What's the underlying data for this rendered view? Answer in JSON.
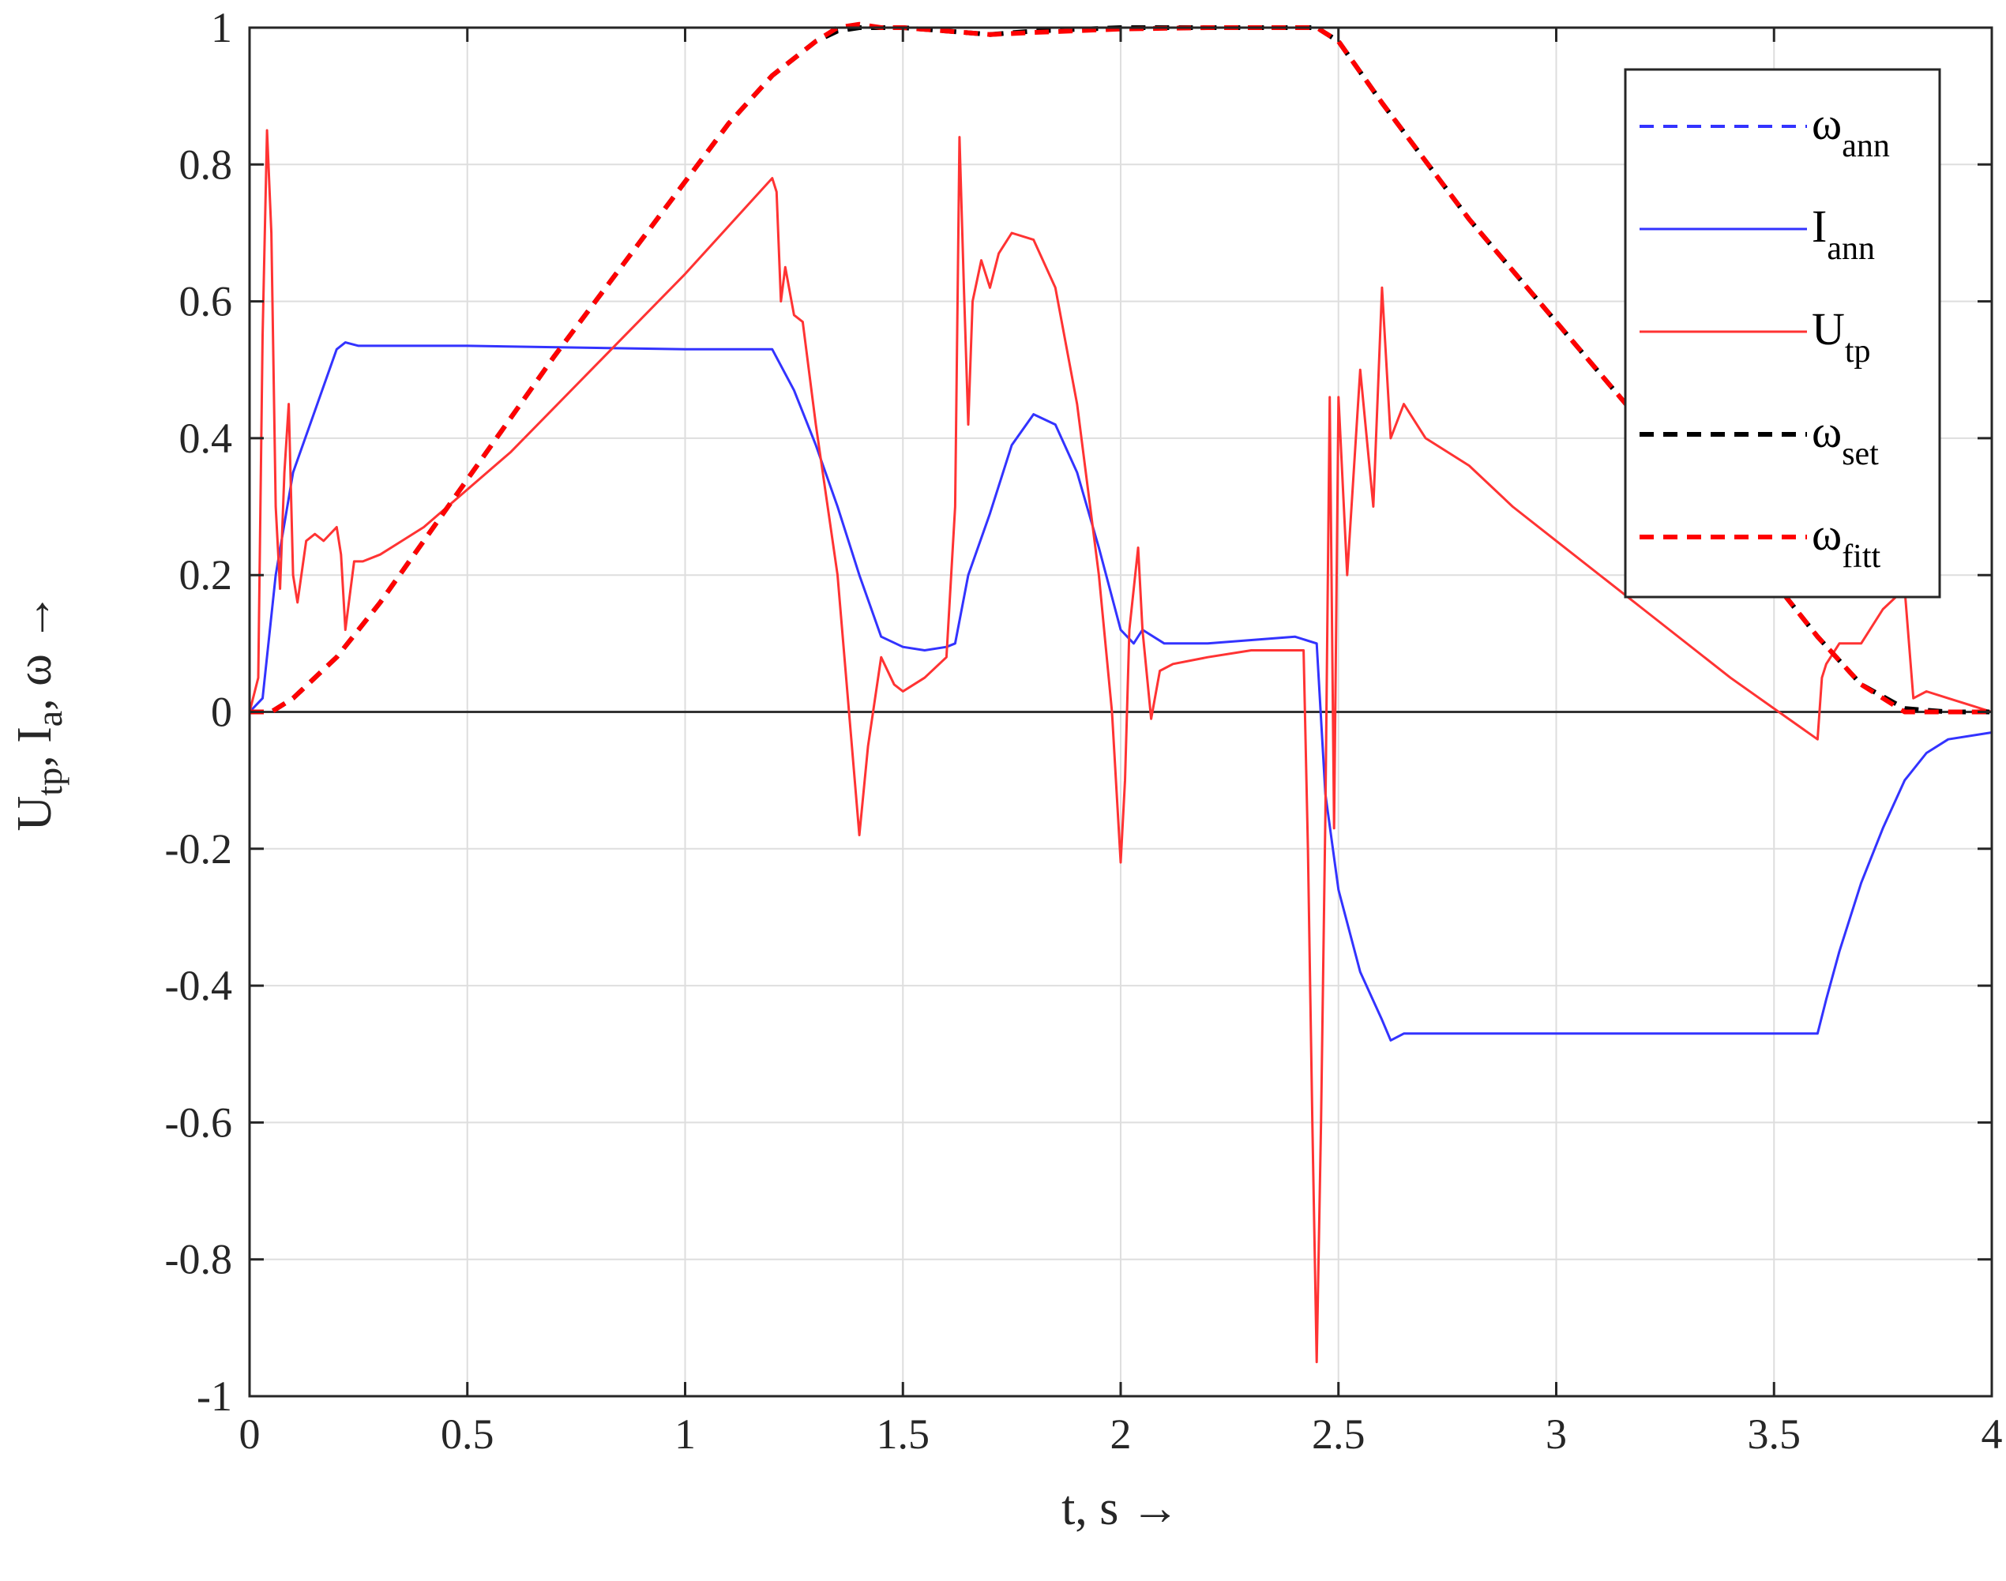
{
  "chart_data": {
    "type": "line",
    "xlabel": "t, s →",
    "ylabel": {
      "parts": [
        {
          "text": "U",
          "sub": "tp"
        },
        {
          "text": ", I",
          "sub": "a"
        },
        {
          "text": ", ω →",
          "sub": ""
        }
      ]
    },
    "xlim": [
      0,
      4
    ],
    "ylim": [
      -1,
      1
    ],
    "xticks": [
      0,
      0.5,
      1,
      1.5,
      2,
      2.5,
      3,
      3.5,
      4
    ],
    "xtick_labels": [
      "0",
      "0.5",
      "1",
      "1.5",
      "2",
      "2.5",
      "3",
      "3.5",
      "4"
    ],
    "yticks": [
      -1,
      -0.8,
      -0.6,
      -0.4,
      -0.2,
      0,
      0.2,
      0.4,
      0.6,
      0.8,
      1
    ],
    "ytick_labels": [
      "-1",
      "-0.8",
      "-0.6",
      "-0.4",
      "-0.2",
      "0",
      "0.2",
      "0.4",
      "0.6",
      "0.8",
      "1"
    ],
    "grid": true,
    "zero_line": true,
    "legend_position": "top-right",
    "series": [
      {
        "key": "omega_set",
        "label_main": "ω",
        "label_sub": "set",
        "color": "#000000",
        "style": "dashed",
        "x": [
          0,
          0.05,
          0.1,
          0.2,
          0.3,
          0.5,
          0.7,
          0.9,
          1.1,
          1.2,
          1.3,
          1.35,
          1.4,
          1.45,
          1.5,
          1.6,
          1.7,
          1.8,
          2.0,
          2.2,
          2.4,
          2.45,
          2.5,
          2.6,
          2.8,
          3.0,
          3.2,
          3.4,
          3.6,
          3.7,
          3.8,
          3.9,
          4.0
        ],
        "y": [
          0,
          0.0,
          0.02,
          0.08,
          0.16,
          0.34,
          0.52,
          0.69,
          0.86,
          0.93,
          0.98,
          0.995,
          1.0,
          1.0,
          1.0,
          0.995,
          0.99,
          0.995,
          1.0,
          1.0,
          1.0,
          1.0,
          0.98,
          0.89,
          0.72,
          0.57,
          0.42,
          0.27,
          0.11,
          0.04,
          0.005,
          0.0,
          0.0
        ]
      },
      {
        "key": "omega_ann",
        "label_main": "ω",
        "label_sub": "ann",
        "color": "#3333ff",
        "style": "dashed",
        "x": [
          0,
          0.05,
          0.1,
          0.2,
          0.3,
          0.5,
          0.7,
          0.9,
          1.1,
          1.2,
          1.3,
          1.35,
          1.4,
          1.45,
          1.5,
          1.6,
          1.7,
          1.8,
          2.0,
          2.2,
          2.4,
          2.45,
          2.5,
          2.6,
          2.8,
          3.0,
          3.2,
          3.4,
          3.6,
          3.7,
          3.8,
          3.9,
          4.0
        ],
        "y": [
          0,
          0.0,
          0.02,
          0.08,
          0.16,
          0.34,
          0.52,
          0.69,
          0.86,
          0.93,
          0.98,
          0.995,
          1.0,
          1.0,
          1.0,
          0.995,
          0.99,
          0.995,
          1.0,
          1.0,
          1.0,
          1.0,
          0.98,
          0.89,
          0.72,
          0.57,
          0.42,
          0.27,
          0.11,
          0.04,
          0.005,
          0.0,
          0.0
        ]
      },
      {
        "key": "omega_fitt",
        "label_main": "ω",
        "label_sub": "fitt",
        "color": "#ff0000",
        "style": "dashed",
        "x": [
          0,
          0.05,
          0.1,
          0.2,
          0.3,
          0.5,
          0.7,
          0.9,
          1.1,
          1.2,
          1.3,
          1.35,
          1.4,
          1.45,
          1.5,
          1.6,
          1.7,
          1.8,
          2.0,
          2.2,
          2.4,
          2.45,
          2.5,
          2.6,
          2.8,
          3.0,
          3.2,
          3.4,
          3.6,
          3.7,
          3.8,
          3.9,
          4.0
        ],
        "y": [
          0,
          0.0,
          0.02,
          0.08,
          0.16,
          0.34,
          0.52,
          0.69,
          0.86,
          0.93,
          0.98,
          1.0,
          1.005,
          1.0,
          1.0,
          0.995,
          0.99,
          0.993,
          0.998,
          1.0,
          1.0,
          1.0,
          0.98,
          0.89,
          0.72,
          0.57,
          0.42,
          0.27,
          0.11,
          0.04,
          0.0,
          0.0,
          0.0
        ]
      },
      {
        "key": "I_ann",
        "label_main": "I",
        "label_sub": "ann",
        "color": "#3333ff",
        "style": "solid",
        "x": [
          0,
          0.03,
          0.06,
          0.1,
          0.15,
          0.2,
          0.22,
          0.25,
          0.3,
          0.5,
          1.0,
          1.2,
          1.25,
          1.3,
          1.35,
          1.4,
          1.45,
          1.5,
          1.55,
          1.6,
          1.62,
          1.65,
          1.7,
          1.75,
          1.8,
          1.85,
          1.9,
          1.95,
          2.0,
          2.03,
          2.05,
          2.1,
          2.2,
          2.4,
          2.45,
          2.47,
          2.5,
          2.55,
          2.6,
          2.62,
          2.65,
          2.8,
          3.0,
          3.5,
          3.6,
          3.62,
          3.65,
          3.7,
          3.75,
          3.8,
          3.85,
          3.9,
          4.0
        ],
        "y": [
          0,
          0.02,
          0.2,
          0.35,
          0.44,
          0.53,
          0.54,
          0.535,
          0.535,
          0.535,
          0.53,
          0.53,
          0.47,
          0.39,
          0.3,
          0.2,
          0.11,
          0.095,
          0.09,
          0.095,
          0.1,
          0.2,
          0.29,
          0.39,
          0.435,
          0.42,
          0.35,
          0.24,
          0.12,
          0.1,
          0.12,
          0.1,
          0.1,
          0.11,
          0.1,
          -0.12,
          -0.26,
          -0.38,
          -0.45,
          -0.48,
          -0.47,
          -0.47,
          -0.47,
          -0.47,
          -0.47,
          -0.42,
          -0.35,
          -0.25,
          -0.17,
          -0.1,
          -0.06,
          -0.04,
          -0.03
        ]
      },
      {
        "key": "U_tp",
        "label_main": "U",
        "label_sub": "tp",
        "color": "#ff3333",
        "style": "solid",
        "x": [
          0,
          0.02,
          0.03,
          0.04,
          0.05,
          0.06,
          0.07,
          0.08,
          0.09,
          0.1,
          0.11,
          0.13,
          0.15,
          0.17,
          0.2,
          0.21,
          0.22,
          0.24,
          0.26,
          0.3,
          0.4,
          0.6,
          0.8,
          1.0,
          1.2,
          1.21,
          1.22,
          1.23,
          1.25,
          1.27,
          1.3,
          1.35,
          1.4,
          1.42,
          1.45,
          1.48,
          1.5,
          1.55,
          1.6,
          1.62,
          1.63,
          1.64,
          1.65,
          1.66,
          1.68,
          1.7,
          1.72,
          1.75,
          1.8,
          1.85,
          1.9,
          1.95,
          1.98,
          2.0,
          2.01,
          2.02,
          2.04,
          2.05,
          2.07,
          2.09,
          2.12,
          2.2,
          2.3,
          2.42,
          2.43,
          2.44,
          2.45,
          2.46,
          2.47,
          2.48,
          2.49,
          2.5,
          2.52,
          2.55,
          2.58,
          2.6,
          2.62,
          2.65,
          2.7,
          2.8,
          2.9,
          3.0,
          3.2,
          3.4,
          3.6,
          3.61,
          3.62,
          3.65,
          3.7,
          3.75,
          3.8,
          3.82,
          3.85,
          3.9,
          3.95,
          4.0
        ],
        "y": [
          0,
          0.05,
          0.55,
          0.85,
          0.7,
          0.3,
          0.18,
          0.35,
          0.45,
          0.2,
          0.16,
          0.25,
          0.26,
          0.25,
          0.27,
          0.23,
          0.12,
          0.22,
          0.22,
          0.23,
          0.27,
          0.38,
          0.51,
          0.64,
          0.78,
          0.76,
          0.6,
          0.65,
          0.58,
          0.57,
          0.42,
          0.2,
          -0.18,
          -0.05,
          0.08,
          0.04,
          0.03,
          0.05,
          0.08,
          0.3,
          0.84,
          0.62,
          0.42,
          0.6,
          0.66,
          0.62,
          0.67,
          0.7,
          0.69,
          0.62,
          0.45,
          0.2,
          0.0,
          -0.22,
          -0.1,
          0.12,
          0.24,
          0.12,
          -0.01,
          0.06,
          0.07,
          0.08,
          0.09,
          0.09,
          -0.2,
          -0.6,
          -0.95,
          -0.6,
          -0.15,
          0.46,
          -0.17,
          0.46,
          0.2,
          0.5,
          0.3,
          0.62,
          0.4,
          0.45,
          0.4,
          0.36,
          0.3,
          0.25,
          0.15,
          0.05,
          -0.04,
          0.05,
          0.07,
          0.1,
          0.1,
          0.15,
          0.18,
          0.02,
          0.03,
          0.02,
          0.01,
          0.0
        ]
      }
    ],
    "legend_order": [
      "omega_ann",
      "I_ann",
      "U_tp",
      "omega_set",
      "omega_fitt"
    ]
  }
}
